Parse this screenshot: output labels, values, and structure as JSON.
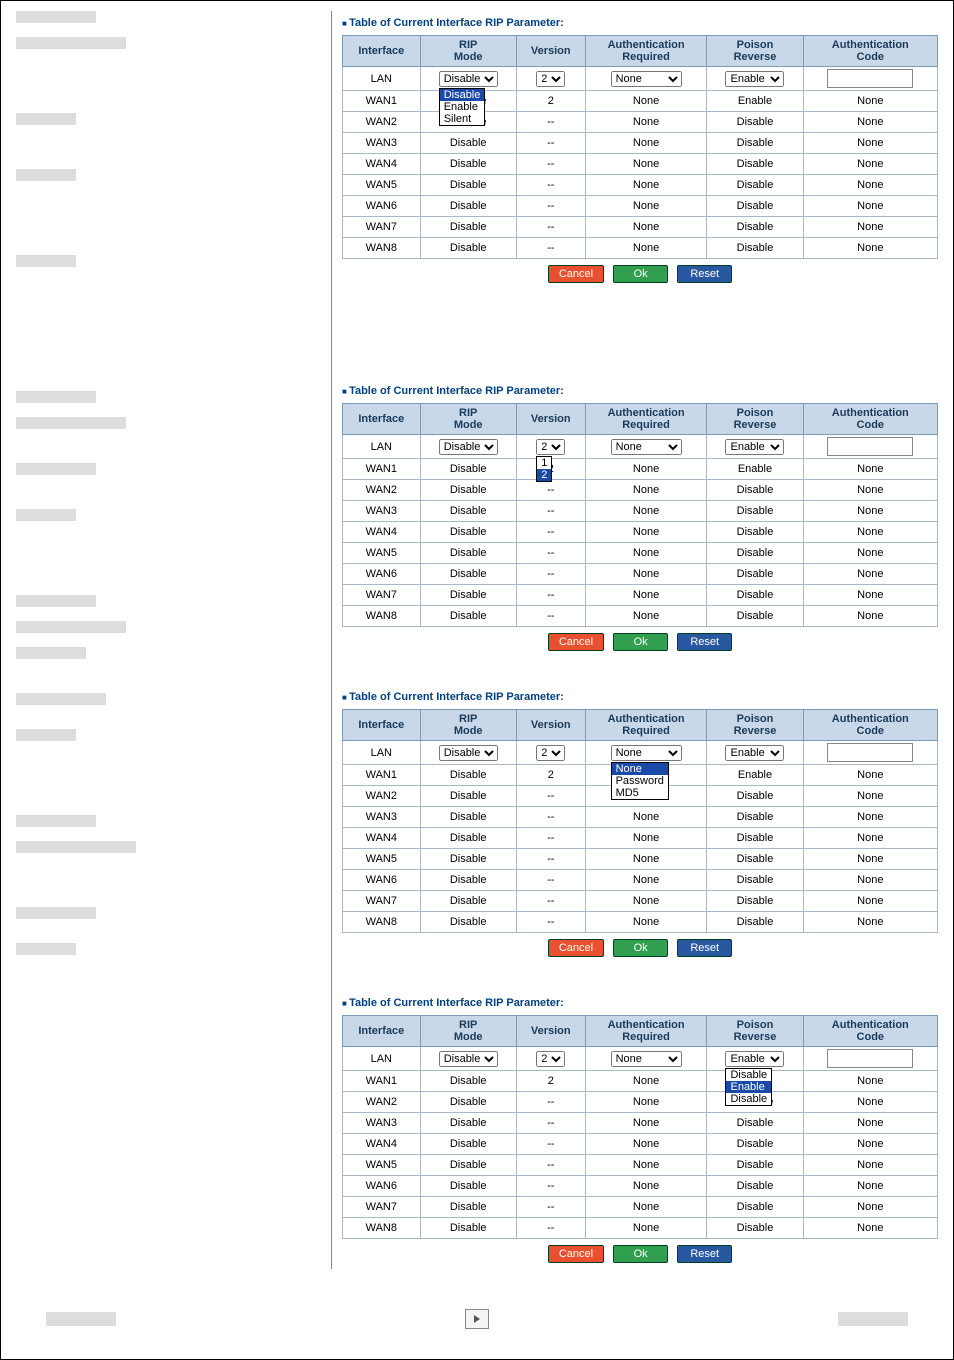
{
  "title": "Table of Current Interface RIP Parameter:",
  "columns": [
    "Interface",
    "RIP Mode",
    "Version",
    "Authentication Required",
    "Poison Reverse",
    "Authentication Code"
  ],
  "buttons": {
    "cancel": "Cancel",
    "ok": "Ok",
    "reset": "Reset"
  },
  "lan_defaults": {
    "rip_mode": "Disable",
    "version": "2",
    "auth": "None",
    "poison": "Enable"
  },
  "rows_default": [
    {
      "iface": "WAN1",
      "mode": "Disable",
      "ver": "2",
      "auth": "None",
      "poison": "Enable",
      "code": "None"
    },
    {
      "iface": "WAN2",
      "mode": "Disable",
      "ver": "--",
      "auth": "None",
      "poison": "Disable",
      "code": "None"
    },
    {
      "iface": "WAN3",
      "mode": "Disable",
      "ver": "--",
      "auth": "None",
      "poison": "Disable",
      "code": "None"
    },
    {
      "iface": "WAN4",
      "mode": "Disable",
      "ver": "--",
      "auth": "None",
      "poison": "Disable",
      "code": "None"
    },
    {
      "iface": "WAN5",
      "mode": "Disable",
      "ver": "--",
      "auth": "None",
      "poison": "Disable",
      "code": "None"
    },
    {
      "iface": "WAN6",
      "mode": "Disable",
      "ver": "--",
      "auth": "None",
      "poison": "Disable",
      "code": "None"
    },
    {
      "iface": "WAN7",
      "mode": "Disable",
      "ver": "--",
      "auth": "None",
      "poison": "Disable",
      "code": "None"
    },
    {
      "iface": "WAN8",
      "mode": "Disable",
      "ver": "--",
      "auth": "None",
      "poison": "Disable",
      "code": "None"
    }
  ],
  "panel1": {
    "dropdown_col": "rip_mode",
    "options": [
      "Disable",
      "Enable",
      "Silent"
    ],
    "selected": "Disable",
    "wan1_poison": "Enable"
  },
  "panel2": {
    "dropdown_col": "version",
    "options": [
      "1",
      "2"
    ],
    "selected": "2"
  },
  "panel3": {
    "dropdown_col": "auth",
    "options": [
      "None",
      "Password",
      "MD5"
    ],
    "selected": "None"
  },
  "panel4": {
    "dropdown_col": "poison",
    "options": [
      "Disable",
      "Enable",
      "Disable"
    ],
    "selected": "Enable",
    "wan1_poison_shown": ""
  },
  "colors": {
    "header_bg": "#c8d8e8",
    "header_text": "#1a3a5a",
    "border": "#7b9ab8",
    "title_text": "#004080",
    "btn_cancel": "#e85030",
    "btn_ok": "#30a050",
    "btn_reset": "#2858a0",
    "dropdown_selected_bg": "#1a4aa8"
  }
}
